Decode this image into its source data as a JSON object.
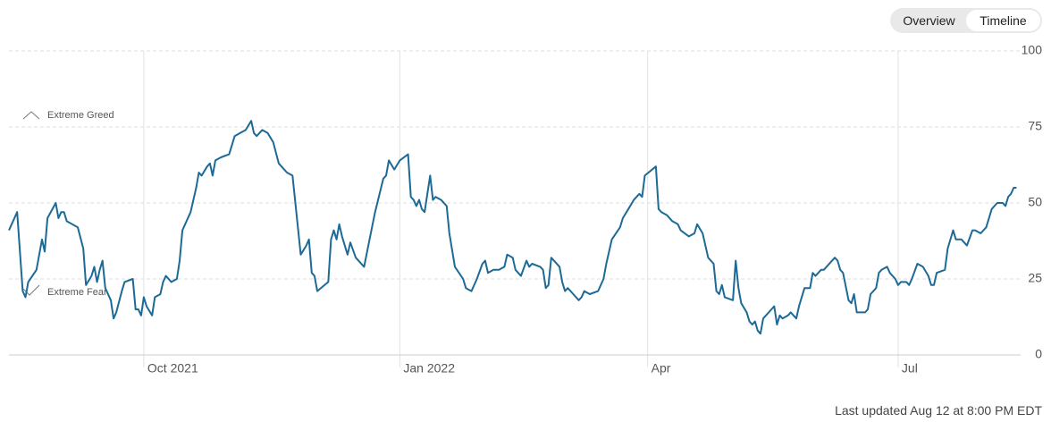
{
  "controls": [
    "Overview",
    "Timeline"
  ],
  "chart_data": {
    "type": "line",
    "annotations": [
      "Extreme Greed",
      "Extreme Fear"
    ],
    "color": "#1d6a96",
    "grid": true,
    "xlim": [
      0,
      367.5
    ],
    "xticks": [
      {
        "value": 49,
        "label": "Oct 2021"
      },
      {
        "value": 142,
        "label": "Jan 2022"
      },
      {
        "value": 232,
        "label": "Apr"
      },
      {
        "value": 323,
        "label": "Jul"
      }
    ],
    "ylim": [
      0,
      100
    ],
    "yticks": [
      0,
      25,
      50,
      75,
      100
    ],
    "x": [
      0,
      3,
      5,
      6,
      7,
      10,
      12,
      13,
      14,
      17,
      18,
      19,
      20,
      21,
      25,
      27,
      28,
      30,
      31,
      32,
      33,
      34,
      35,
      37,
      38,
      39,
      41,
      42,
      45,
      46,
      47,
      48,
      49,
      50,
      52,
      53,
      55,
      56,
      57,
      59,
      61,
      62,
      63,
      66,
      68,
      69,
      70,
      72,
      73,
      74,
      75,
      77,
      80,
      82,
      84,
      86,
      88,
      89,
      90,
      92,
      94,
      96,
      98,
      101,
      103,
      106,
      108,
      109,
      110,
      111,
      112,
      116,
      117,
      118,
      119,
      120,
      121,
      123,
      124,
      126,
      129,
      131,
      133,
      136,
      137,
      138,
      140,
      142,
      145,
      146,
      147,
      148,
      149,
      150,
      151,
      153,
      154,
      155,
      157,
      159,
      160,
      162,
      165,
      166,
      168,
      170,
      172,
      173,
      174,
      176,
      178,
      180,
      181,
      183,
      184,
      186,
      188,
      189,
      190,
      193,
      194,
      195,
      196,
      197,
      200,
      201,
      202,
      203,
      205,
      207,
      208,
      209,
      211,
      214,
      216,
      217,
      219,
      222,
      223,
      225,
      227,
      229,
      230,
      231,
      235,
      236,
      237,
      239,
      241,
      243,
      244,
      247,
      249,
      250,
      252,
      254,
      256,
      257,
      258,
      259,
      260,
      263,
      264,
      265,
      266,
      268,
      269,
      270,
      271,
      272,
      273,
      274,
      277,
      278,
      279,
      280,
      281,
      283,
      284,
      286,
      287,
      289,
      291,
      292,
      293,
      295,
      296,
      299,
      300,
      301,
      302,
      303,
      305,
      306,
      307,
      308,
      311,
      312,
      313,
      315,
      316,
      317,
      319,
      320,
      322,
      323,
      324,
      326,
      327,
      328,
      330,
      332,
      334,
      335,
      336,
      337,
      340,
      341,
      343,
      344,
      346,
      348,
      350,
      351,
      353,
      355,
      357,
      359,
      361,
      362,
      363,
      364,
      365,
      366
    ],
    "values": [
      41,
      47,
      21,
      19,
      24,
      28,
      38,
      34,
      45,
      50,
      45,
      47,
      47,
      44,
      42,
      35,
      23,
      26,
      29,
      24,
      28,
      31,
      22,
      18,
      12,
      14,
      21,
      24,
      25,
      15,
      15,
      13,
      19,
      16,
      13,
      19,
      20,
      24,
      26,
      24,
      25,
      31,
      41,
      47,
      55,
      60,
      59,
      62,
      63,
      59,
      64,
      65,
      66,
      72,
      73,
      74,
      77,
      73,
      72,
      74,
      73,
      70,
      63,
      60,
      59,
      33,
      36,
      38,
      27,
      26,
      21,
      24,
      38,
      41,
      38,
      43,
      39,
      33,
      37,
      32,
      29,
      38,
      47,
      58,
      59,
      64,
      61,
      64,
      66,
      52,
      51,
      49,
      51,
      48,
      47,
      59,
      51,
      52,
      51,
      49,
      40,
      29,
      25,
      22,
      21,
      25,
      30,
      31,
      27,
      28,
      28,
      29,
      33,
      32,
      28,
      26,
      31,
      29,
      30,
      29,
      28,
      22,
      23,
      32,
      29,
      24,
      21,
      22,
      20,
      18,
      19,
      21,
      20,
      21,
      25,
      30,
      38,
      42,
      45,
      48,
      51,
      53,
      52,
      59,
      62,
      48,
      47,
      46,
      44,
      43,
      41,
      39,
      40,
      43,
      40,
      32,
      30,
      21,
      20,
      23,
      19,
      18,
      31,
      22,
      17,
      14,
      11,
      10,
      11,
      8,
      7,
      12,
      15,
      16,
      10,
      13,
      12,
      13,
      14,
      12,
      16,
      22,
      22,
      27,
      26,
      28,
      28,
      31,
      32,
      31,
      28,
      27,
      18,
      17,
      20,
      14,
      14,
      15,
      20,
      22,
      27,
      28,
      29,
      27,
      25,
      23,
      24,
      24,
      23,
      25,
      30,
      29,
      26,
      23,
      23,
      27,
      28,
      35,
      41,
      38,
      38,
      36,
      41,
      41,
      40,
      42,
      48,
      50,
      50,
      49,
      52,
      53,
      55,
      55
    ]
  },
  "last_updated": "Last updated Aug 12 at 8:00 PM EDT"
}
